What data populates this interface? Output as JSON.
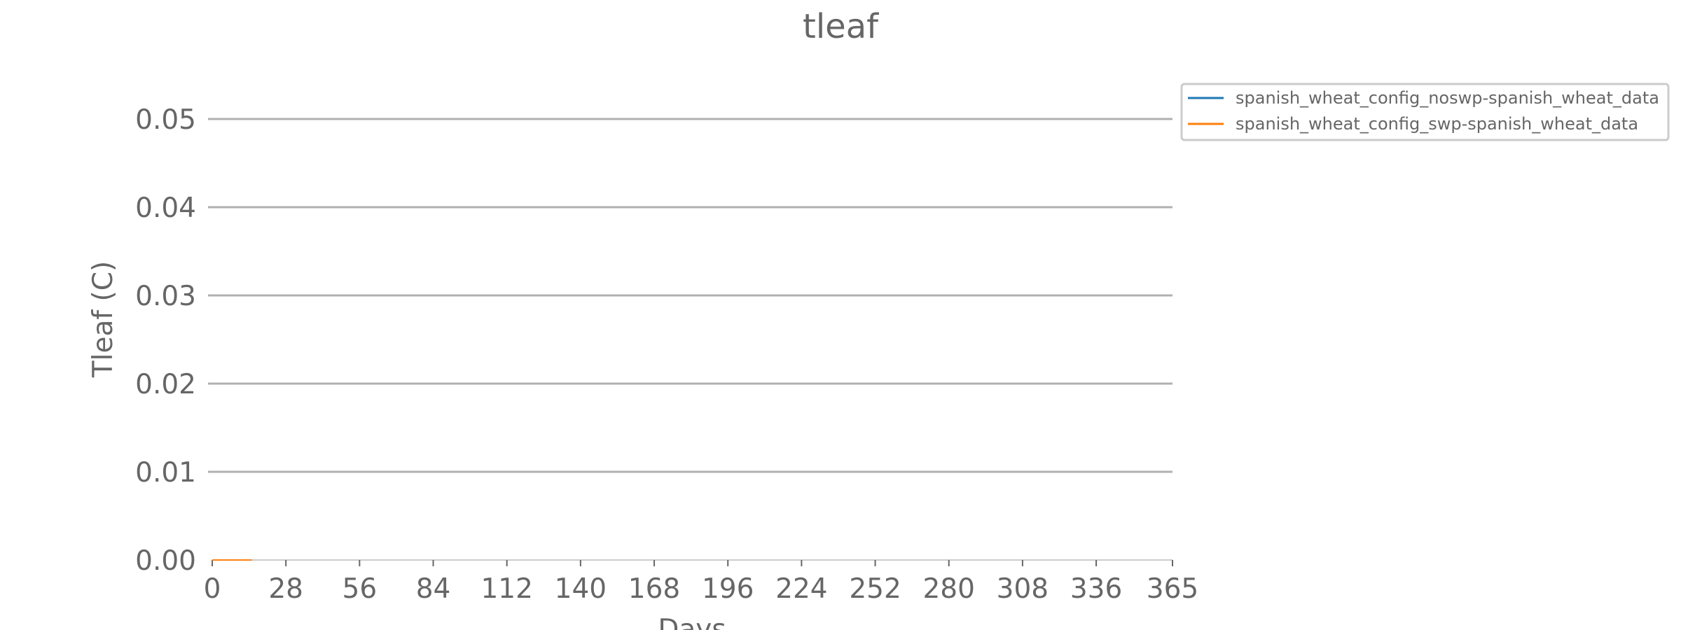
{
  "chart_data": {
    "type": "line",
    "title": "tleaf",
    "xlabel": "Days",
    "ylabel": "Tleaf (C)",
    "xlim": [
      0,
      365
    ],
    "ylim": [
      0,
      0.05
    ],
    "x_ticks": [
      0,
      28,
      56,
      84,
      112,
      140,
      168,
      196,
      224,
      252,
      280,
      308,
      336,
      365
    ],
    "x_tick_labels": [
      "0",
      "28",
      "56",
      "84",
      "112",
      "140",
      "168",
      "196",
      "224",
      "252",
      "280",
      "308",
      "336",
      "365"
    ],
    "y_ticks": [
      0,
      0.01,
      0.02,
      0.03,
      0.04,
      0.05
    ],
    "y_tick_labels": [
      "0.00",
      "0.01",
      "0.02",
      "0.03",
      "0.04",
      "0.05"
    ],
    "grid": "horizontal",
    "legend_position": "top-right, outside plot",
    "series": [
      {
        "name": "spanish_wheat_config_noswp-spanish_wheat_data",
        "color": "#1f77b4",
        "x": [
          0,
          15
        ],
        "y": [
          0,
          0
        ]
      },
      {
        "name": "spanish_wheat_config_swp-spanish_wheat_data",
        "color": "#ff7f0e",
        "x": [
          0,
          15
        ],
        "y": [
          0,
          0
        ]
      }
    ]
  }
}
